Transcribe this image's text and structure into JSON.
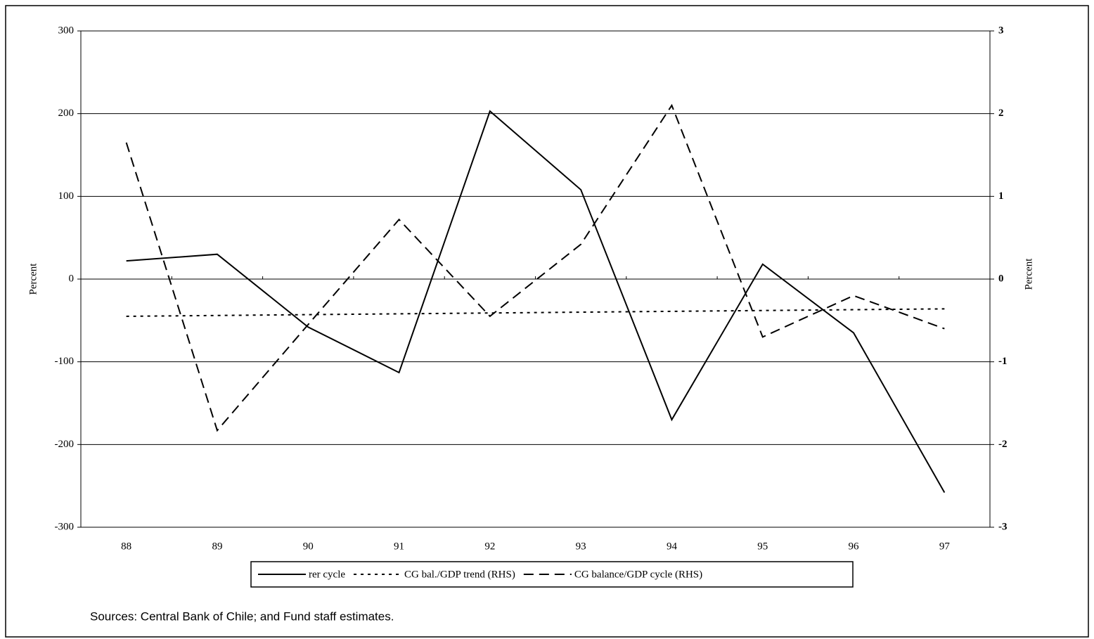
{
  "chart_data": {
    "type": "line",
    "categories": [
      "88",
      "89",
      "90",
      "91",
      "92",
      "93",
      "94",
      "95",
      "96",
      "97"
    ],
    "ylabel": "Percent",
    "y2label": "Percent",
    "ylim": [
      -300,
      300
    ],
    "yticks": [
      -300,
      -200,
      -100,
      0,
      100,
      200,
      300
    ],
    "y2lim": [
      -3,
      3
    ],
    "y2ticks": [
      -3,
      -2,
      -1,
      0,
      1,
      2,
      3
    ],
    "grid": true,
    "legend": "bottom",
    "series": [
      {
        "name": "rer cycle",
        "color": "#000000",
        "style": "solid",
        "values": [
          22,
          30,
          -58,
          -113,
          203,
          108,
          -170,
          18,
          -65,
          -258
        ]
      },
      {
        "name": "CG bal./GDP trend (RHS)",
        "color": "#000000",
        "style": "dotted",
        "axis": "y2",
        "values": [
          -0.45,
          -0.44,
          -0.43,
          -0.42,
          -0.41,
          -0.4,
          -0.39,
          -0.38,
          -0.37,
          -0.36
        ]
      },
      {
        "name": "CG balance/GDP cycle (RHS)",
        "color": "#000000",
        "style": "dashed",
        "axis": "y2",
        "values": [
          1.65,
          -1.83,
          -0.55,
          0.72,
          -0.45,
          0.42,
          2.1,
          -0.7,
          -0.2,
          -0.6
        ]
      }
    ],
    "note": "Sources:  Central Bank of Chile; and Fund staff estimates."
  }
}
